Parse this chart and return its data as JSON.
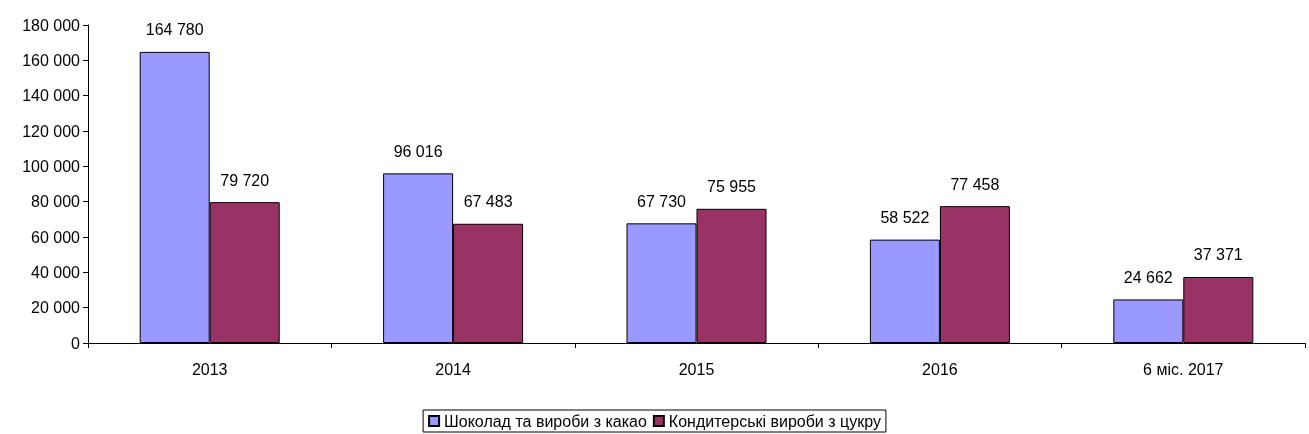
{
  "chart_data": {
    "type": "bar",
    "categories": [
      "2013",
      "2014",
      "2015",
      "2016",
      "6 міс. 2017"
    ],
    "series": [
      {
        "name": "Шоколад та вироби з какао",
        "color": "#9999ff",
        "values": [
          164780,
          96016,
          67730,
          58522,
          24662
        ]
      },
      {
        "name": "Кондитерські вироби з цукру",
        "color": "#993366",
        "values": [
          79720,
          67483,
          75955,
          77458,
          37371
        ]
      }
    ],
    "ylim": [
      0,
      180000
    ],
    "yticks": [
      0,
      20000,
      40000,
      60000,
      80000,
      100000,
      120000,
      140000,
      160000,
      180000
    ],
    "data_labels": true,
    "grid": false,
    "legend": "bottom"
  }
}
